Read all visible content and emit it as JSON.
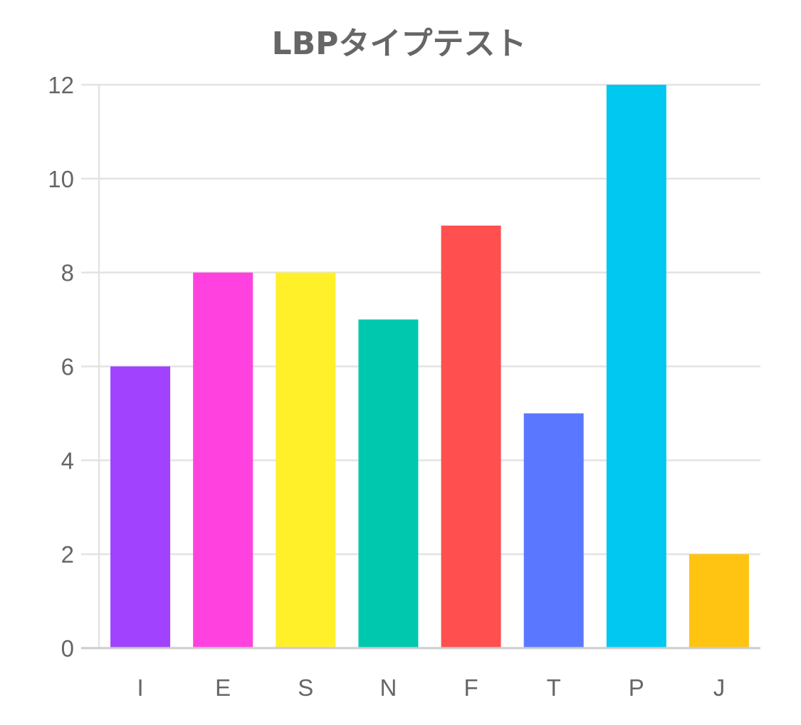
{
  "chart_data": {
    "type": "bar",
    "title": "LBPタイプテスト",
    "categories": [
      "I",
      "E",
      "S",
      "N",
      "F",
      "T",
      "P",
      "J"
    ],
    "values": [
      6,
      8,
      8,
      7,
      9,
      5,
      12,
      2
    ],
    "colors": [
      "#A142FF",
      "#FF42DF",
      "#FFF02A",
      "#00C8AF",
      "#FF4F4F",
      "#5A78FF",
      "#00C8F0",
      "#FFC412"
    ],
    "ylim": [
      0,
      12
    ],
    "yticks": [
      0,
      2,
      4,
      6,
      8,
      10,
      12
    ],
    "xlabel": "",
    "ylabel": "",
    "grid": true,
    "legend": "none",
    "colors_meta": {
      "text": "#666666",
      "grid": "#E3E3E3",
      "axis": "#CCCCCC"
    }
  }
}
